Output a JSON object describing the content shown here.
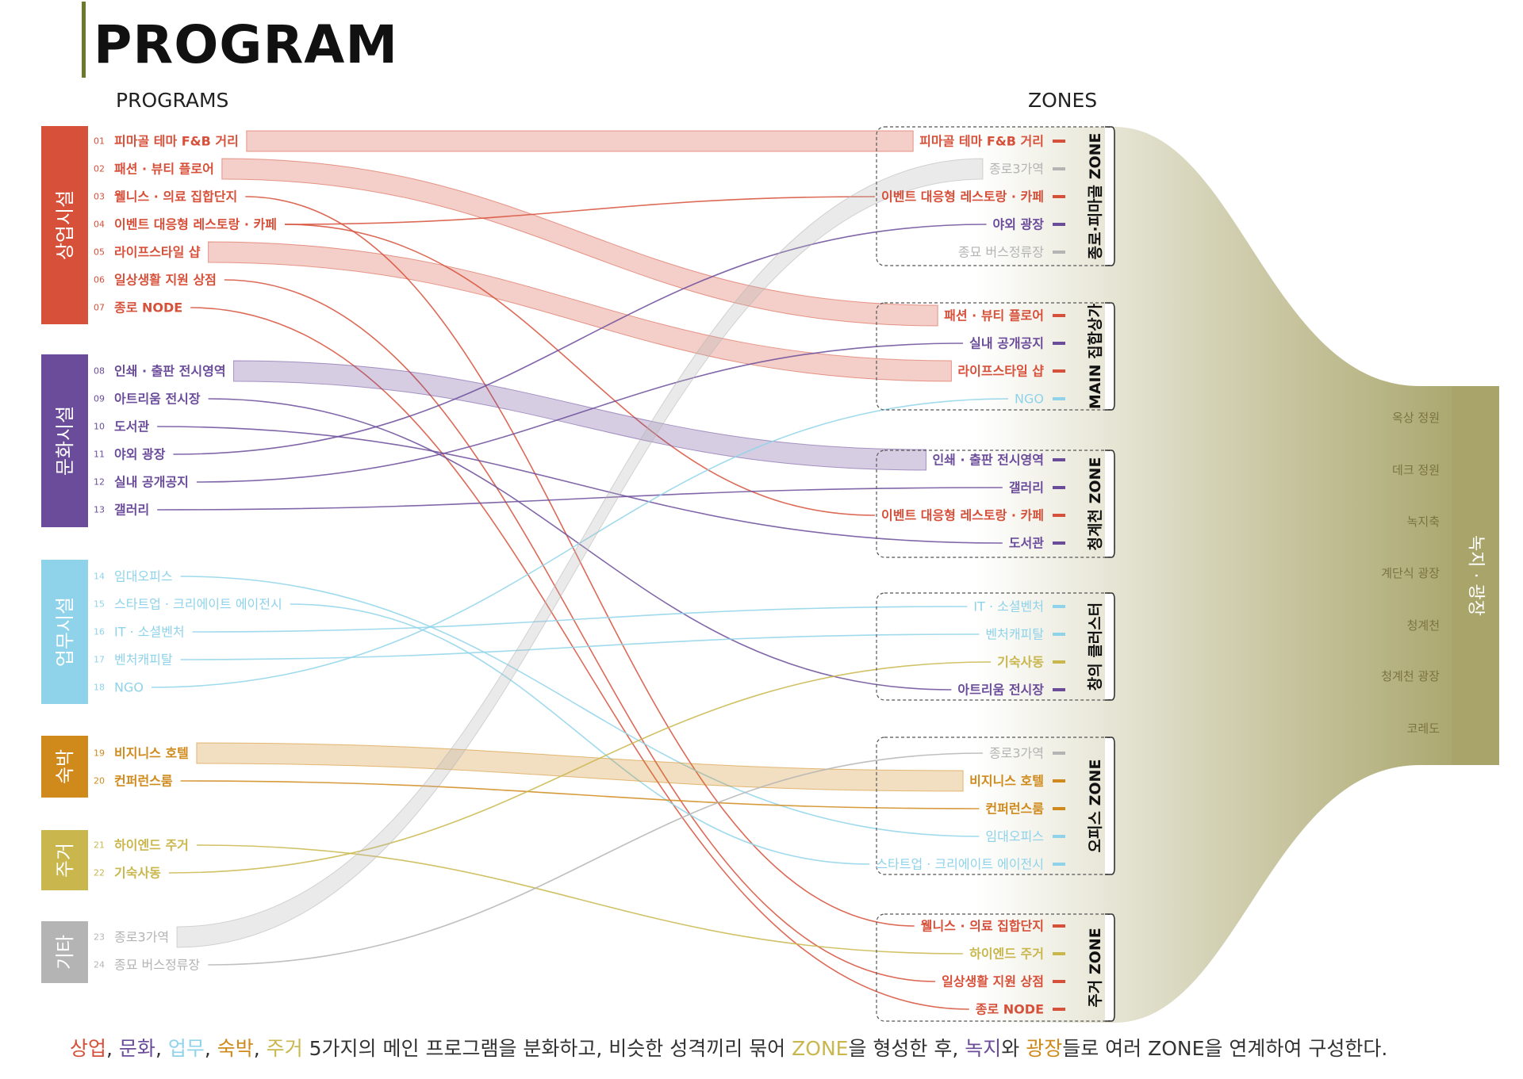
{
  "title": "PROGRAM",
  "headers": {
    "programs": "PROGRAMS",
    "zones": "ZONES"
  },
  "colors": {
    "commercial": "#d6503a",
    "culture": "#6b4c9a",
    "office": "#8fd3ea",
    "lodging": "#d08a1c",
    "housing": "#c9b74e",
    "etc": "#b4b4b4",
    "green": "#a8a46a"
  },
  "categories": [
    {
      "key": "commercial",
      "label": "상업시설"
    },
    {
      "key": "culture",
      "label": "문화시설"
    },
    {
      "key": "office",
      "label": "업무시설"
    },
    {
      "key": "lodging",
      "label": "숙박"
    },
    {
      "key": "housing",
      "label": "주거"
    },
    {
      "key": "etc",
      "label": "기타"
    }
  ],
  "programs": [
    {
      "num": "01",
      "label": "피마골 테마 F&B 거리",
      "cat": "commercial"
    },
    {
      "num": "02",
      "label": "패션 · 뷰티 플로어",
      "cat": "commercial"
    },
    {
      "num": "03",
      "label": "웰니스 · 의료 집합단지",
      "cat": "commercial"
    },
    {
      "num": "04",
      "label": "이벤트 대응형 레스토랑 · 카페",
      "cat": "commercial"
    },
    {
      "num": "05",
      "label": "라이프스타일 샵",
      "cat": "commercial"
    },
    {
      "num": "06",
      "label": "일상생활 지원 상점",
      "cat": "commercial"
    },
    {
      "num": "07",
      "label": "종로 NODE",
      "cat": "commercial"
    },
    {
      "num": "08",
      "label": "인쇄 · 출판 전시영역",
      "cat": "culture"
    },
    {
      "num": "09",
      "label": "아트리움 전시장",
      "cat": "culture"
    },
    {
      "num": "10",
      "label": "도서관",
      "cat": "culture"
    },
    {
      "num": "11",
      "label": "야외 광장",
      "cat": "culture"
    },
    {
      "num": "12",
      "label": "실내 공개공지",
      "cat": "culture"
    },
    {
      "num": "13",
      "label": "갤러리",
      "cat": "culture"
    },
    {
      "num": "14",
      "label": "임대오피스",
      "cat": "office"
    },
    {
      "num": "15",
      "label": "스타트업 · 크리에이트 에이전시",
      "cat": "office"
    },
    {
      "num": "16",
      "label": "IT · 소셜벤처",
      "cat": "office"
    },
    {
      "num": "17",
      "label": "벤처캐피탈",
      "cat": "office"
    },
    {
      "num": "18",
      "label": "NGO",
      "cat": "office"
    },
    {
      "num": "19",
      "label": "비지니스 호텔",
      "cat": "lodging"
    },
    {
      "num": "20",
      "label": "컨퍼런스룸",
      "cat": "lodging"
    },
    {
      "num": "21",
      "label": "하이엔드 주거",
      "cat": "housing"
    },
    {
      "num": "22",
      "label": "기숙사동",
      "cat": "housing"
    },
    {
      "num": "23",
      "label": "종로3가역",
      "cat": "etc"
    },
    {
      "num": "24",
      "label": "종묘 버스정류장",
      "cat": "etc"
    }
  ],
  "zones": [
    {
      "label": "종로·피마골 ZONE",
      "items": [
        {
          "label": "피마골 테마 F&B 거리",
          "cat": "commercial"
        },
        {
          "label": "종로3가역",
          "cat": "etc"
        },
        {
          "label": "이벤트 대응형 레스토랑 · 카페",
          "cat": "commercial"
        },
        {
          "label": "야외 광장",
          "cat": "culture"
        },
        {
          "label": "종묘 버스정류장",
          "cat": "etc"
        }
      ]
    },
    {
      "label": "MAIN 집합상가",
      "items": [
        {
          "label": "패션 · 뷰티 플로어",
          "cat": "commercial"
        },
        {
          "label": "실내 공개공지",
          "cat": "culture"
        },
        {
          "label": "라이프스타일 샵",
          "cat": "commercial"
        },
        {
          "label": "NGO",
          "cat": "office"
        }
      ]
    },
    {
      "label": "청계천 ZONE",
      "items": [
        {
          "label": "인쇄 · 출판 전시영역",
          "cat": "culture"
        },
        {
          "label": "갤러리",
          "cat": "culture"
        },
        {
          "label": "이벤트 대응형 레스토랑 · 카페",
          "cat": "commercial"
        },
        {
          "label": "도서관",
          "cat": "culture"
        }
      ]
    },
    {
      "label": "창의 클러스터",
      "items": [
        {
          "label": "IT · 소셜벤처",
          "cat": "office"
        },
        {
          "label": "벤처캐피탈",
          "cat": "office"
        },
        {
          "label": "기숙사동",
          "cat": "housing"
        },
        {
          "label": "아트리움 전시장",
          "cat": "culture"
        }
      ]
    },
    {
      "label": "오피스 ZONE",
      "items": [
        {
          "label": "종로3가역",
          "cat": "etc"
        },
        {
          "label": "비지니스 호텔",
          "cat": "lodging"
        },
        {
          "label": "컨퍼런스룸",
          "cat": "lodging"
        },
        {
          "label": "임대오피스",
          "cat": "office"
        },
        {
          "label": "스타트업 · 크리에이트 에이전시",
          "cat": "office"
        }
      ]
    },
    {
      "label": "주거 ZONE",
      "items": [
        {
          "label": "웰니스 · 의료 집합단지",
          "cat": "commercial"
        },
        {
          "label": "하이엔드 주거",
          "cat": "housing"
        },
        {
          "label": "일상생활 지원 상점",
          "cat": "commercial"
        },
        {
          "label": "종로 NODE",
          "cat": "commercial"
        }
      ]
    }
  ],
  "green": {
    "label": "녹지 · 광장",
    "items": [
      "옥상 정원",
      "데크 정원",
      "녹지축",
      "계단식 광장",
      "청계천",
      "청계천 광장",
      "코레도"
    ]
  },
  "caption": [
    {
      "text": "상업",
      "cat": "commercial"
    },
    {
      "text": ", ",
      "cat": "plain"
    },
    {
      "text": "문화",
      "cat": "culture"
    },
    {
      "text": ", ",
      "cat": "plain"
    },
    {
      "text": "업무",
      "cat": "office"
    },
    {
      "text": ", ",
      "cat": "plain"
    },
    {
      "text": "숙박",
      "cat": "lodging"
    },
    {
      "text": ", ",
      "cat": "plain"
    },
    {
      "text": "주거",
      "cat": "housing"
    },
    {
      "text": " 5가지의 메인 프로그램을 분화하고, 비슷한 성격끼리 묶어 ",
      "cat": "plain"
    },
    {
      "text": "ZONE",
      "cat": "housing"
    },
    {
      "text": "을 형성한 후, ",
      "cat": "plain"
    },
    {
      "text": "녹지",
      "cat": "culture"
    },
    {
      "text": "와 ",
      "cat": "plain"
    },
    {
      "text": "광장",
      "cat": "lodging"
    },
    {
      "text": "들로 여러 ZONE을 연계하여 구성한다.",
      "cat": "plain"
    }
  ]
}
